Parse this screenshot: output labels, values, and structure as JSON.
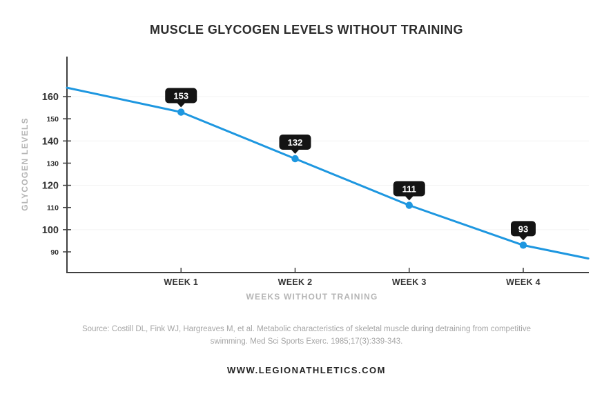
{
  "chart_data": {
    "type": "line",
    "title": "MUSCLE GLYCOGEN LEVELS WITHOUT TRAINING",
    "categories": [
      "WEEK 1",
      "WEEK 2",
      "WEEK 3",
      "WEEK 4"
    ],
    "x": [
      1,
      2,
      3,
      4
    ],
    "values": [
      153,
      132,
      111,
      93
    ],
    "xlabel": "WEEKS WITHOUT TRAINING",
    "ylabel": "GLYCOGEN LEVELS",
    "yticks": [
      160,
      150,
      140,
      130,
      120,
      110,
      100,
      90
    ],
    "major_yticks": [
      160,
      140,
      120,
      100
    ],
    "ylim": [
      80,
      178
    ],
    "grid": "horizontal-major-only",
    "legend": "none",
    "trend_extension": [
      {
        "week": 0,
        "value": 164
      },
      {
        "week": 4.57,
        "value": 87
      }
    ]
  },
  "source": {
    "text": "Source: Costill DL, Fink WJ, Hargreaves M, et al. Metabolic characteristics of skeletal muscle during detraining from competitive swimming. Med Sci Sports Exerc. 1985;17(3):339-343."
  },
  "footer": {
    "text": "WWW.LEGIONATHLETICS.COM"
  },
  "colors": {
    "line": "#1e97e0",
    "point": "#1e97e0",
    "badge_bg": "#141414",
    "badge_text": "#ffffff",
    "axis": "#3f3f3f",
    "tick_label": "#333333",
    "axis_title": "#b5b5b5",
    "grid": "#f3f3f3",
    "title": "#2d2d2d",
    "source": "#a5a5a5",
    "footer": "#242424"
  }
}
